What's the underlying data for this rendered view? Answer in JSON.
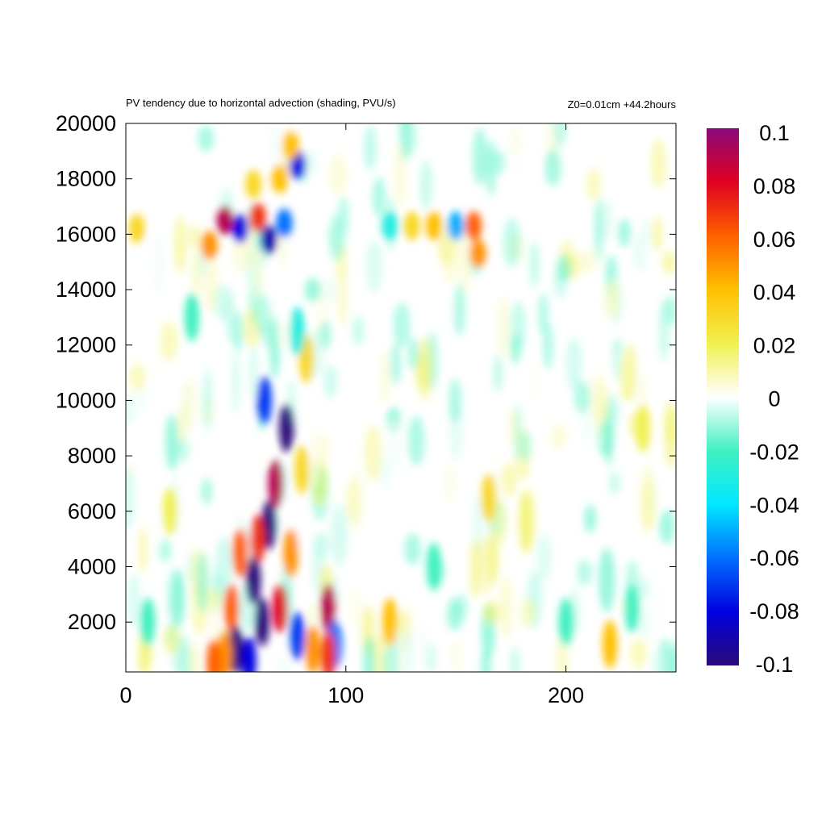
{
  "chart_data": {
    "type": "heatmap",
    "title": "PV tendency due to horizontal advection (shading, PVU/s)",
    "subtitle": "Z0=0.01cm   +44.2hours",
    "xlabel": "",
    "ylabel": "",
    "xlim": [
      0,
      250
    ],
    "ylim": [
      200,
      20000
    ],
    "x_ticks": [
      0,
      100,
      200
    ],
    "y_ticks": [
      2000,
      4000,
      6000,
      8000,
      10000,
      12000,
      14000,
      16000,
      18000,
      20000
    ],
    "colorbar": {
      "range": [
        -0.1,
        0.1
      ],
      "ticks": [
        0.1,
        0.08,
        0.06,
        0.04,
        0.02,
        0,
        -0.02,
        -0.04,
        -0.06,
        -0.08,
        -0.1
      ],
      "colors": [
        "#2a0a7a",
        "#0000e0",
        "#0070ff",
        "#00e8ff",
        "#40f0c0",
        "#ffffff",
        "#f0f050",
        "#ffc000",
        "#ff6000",
        "#e00020",
        "#8a0a7a"
      ]
    },
    "grid": false,
    "features": [
      {
        "x": 45,
        "y": 16500,
        "value": 0.09
      },
      {
        "x": 52,
        "y": 16200,
        "value": -0.08
      },
      {
        "x": 60,
        "y": 16600,
        "value": 0.07
      },
      {
        "x": 65,
        "y": 15800,
        "value": -0.09
      },
      {
        "x": 72,
        "y": 16400,
        "value": -0.06
      },
      {
        "x": 38,
        "y": 15600,
        "value": 0.05
      },
      {
        "x": 78,
        "y": 18500,
        "value": -0.08
      },
      {
        "x": 75,
        "y": 19200,
        "value": 0.04
      },
      {
        "x": 70,
        "y": 18000,
        "value": 0.04
      },
      {
        "x": 58,
        "y": 17800,
        "value": 0.03
      },
      {
        "x": 140,
        "y": 16300,
        "value": 0.04
      },
      {
        "x": 150,
        "y": 16300,
        "value": -0.05
      },
      {
        "x": 158,
        "y": 16300,
        "value": 0.06
      },
      {
        "x": 160,
        "y": 15300,
        "value": 0.05
      },
      {
        "x": 130,
        "y": 16300,
        "value": 0.03
      },
      {
        "x": 120,
        "y": 16300,
        "value": -0.03
      },
      {
        "x": 5,
        "y": 16200,
        "value": 0.03
      },
      {
        "x": 73,
        "y": 9000,
        "value": -0.1
      },
      {
        "x": 63,
        "y": 10000,
        "value": -0.07
      },
      {
        "x": 68,
        "y": 7000,
        "value": 0.09
      },
      {
        "x": 65,
        "y": 5500,
        "value": -0.1
      },
      {
        "x": 60,
        "y": 5000,
        "value": 0.07
      },
      {
        "x": 58,
        "y": 3500,
        "value": -0.1
      },
      {
        "x": 52,
        "y": 4500,
        "value": 0.06
      },
      {
        "x": 48,
        "y": 2500,
        "value": 0.06
      },
      {
        "x": 62,
        "y": 2000,
        "value": -0.1
      },
      {
        "x": 50,
        "y": 1000,
        "value": -0.1
      },
      {
        "x": 45,
        "y": 800,
        "value": 0.05
      },
      {
        "x": 40,
        "y": 500,
        "value": 0.06
      },
      {
        "x": 56,
        "y": 600,
        "value": -0.08
      },
      {
        "x": 70,
        "y": 2500,
        "value": 0.08
      },
      {
        "x": 75,
        "y": 4500,
        "value": 0.05
      },
      {
        "x": 78,
        "y": 1500,
        "value": -0.07
      },
      {
        "x": 85,
        "y": 1000,
        "value": 0.05
      },
      {
        "x": 92,
        "y": 2500,
        "value": 0.09
      },
      {
        "x": 95,
        "y": 1200,
        "value": -0.06
      },
      {
        "x": 92,
        "y": 800,
        "value": 0.07
      },
      {
        "x": 80,
        "y": 7500,
        "value": 0.03
      },
      {
        "x": 82,
        "y": 11500,
        "value": 0.03
      },
      {
        "x": 78,
        "y": 12500,
        "value": -0.03
      },
      {
        "x": 120,
        "y": 2000,
        "value": 0.04
      },
      {
        "x": 140,
        "y": 4000,
        "value": -0.02
      },
      {
        "x": 165,
        "y": 6500,
        "value": 0.03
      },
      {
        "x": 220,
        "y": 1200,
        "value": 0.04
      },
      {
        "x": 230,
        "y": 2500,
        "value": -0.02
      },
      {
        "x": 200,
        "y": 2000,
        "value": -0.02
      },
      {
        "x": 30,
        "y": 13000,
        "value": -0.02
      },
      {
        "x": 20,
        "y": 6000,
        "value": 0.02
      },
      {
        "x": 235,
        "y": 9000,
        "value": 0.02
      },
      {
        "x": 10,
        "y": 2000,
        "value": -0.02
      }
    ]
  }
}
